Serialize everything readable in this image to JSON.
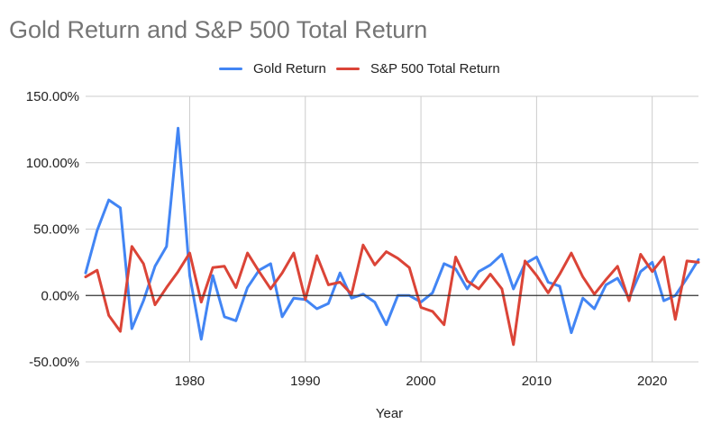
{
  "chart_data": {
    "type": "line",
    "title": "Gold Return and S&P 500 Total Return",
    "xlabel": "Year",
    "ylabel": "",
    "xlim": [
      1971,
      2024
    ],
    "ylim": [
      -0.5,
      1.5
    ],
    "x_ticks": [
      1980,
      1990,
      2000,
      2010,
      2020
    ],
    "y_ticks": [
      -0.5,
      0,
      0.5,
      1,
      1.5
    ],
    "y_tick_labels": [
      "-50.00%",
      "0.00%",
      "50.00%",
      "100.00%",
      "150.00%"
    ],
    "grid": true,
    "legend_position": "top",
    "years": [
      1971,
      1972,
      1973,
      1974,
      1975,
      1976,
      1977,
      1978,
      1979,
      1980,
      1981,
      1982,
      1983,
      1984,
      1985,
      1986,
      1987,
      1988,
      1989,
      1990,
      1991,
      1992,
      1993,
      1994,
      1995,
      1996,
      1997,
      1998,
      1999,
      2000,
      2001,
      2002,
      2003,
      2004,
      2005,
      2006,
      2007,
      2008,
      2009,
      2010,
      2011,
      2012,
      2013,
      2014,
      2015,
      2016,
      2017,
      2018,
      2019,
      2020,
      2021,
      2022,
      2023,
      2024
    ],
    "series": [
      {
        "name": "Gold Return",
        "color": "#4285f4",
        "values": [
          0.17,
          0.49,
          0.72,
          0.66,
          -0.25,
          -0.04,
          0.22,
          0.37,
          1.26,
          0.15,
          -0.33,
          0.15,
          -0.16,
          -0.19,
          0.06,
          0.19,
          0.24,
          -0.16,
          -0.02,
          -0.03,
          -0.1,
          -0.06,
          0.17,
          -0.02,
          0.01,
          -0.05,
          -0.22,
          0.0,
          0.0,
          -0.05,
          0.02,
          0.24,
          0.2,
          0.05,
          0.18,
          0.23,
          0.31,
          0.05,
          0.24,
          0.29,
          0.1,
          0.07,
          -0.28,
          -0.02,
          -0.1,
          0.08,
          0.13,
          -0.02,
          0.18,
          0.25,
          -0.04,
          0.0,
          0.13,
          0.27
        ]
      },
      {
        "name": "S&P 500 Total Return",
        "color": "#db4437",
        "values": [
          0.14,
          0.19,
          -0.15,
          -0.27,
          0.37,
          0.24,
          -0.07,
          0.06,
          0.18,
          0.32,
          -0.05,
          0.21,
          0.22,
          0.06,
          0.32,
          0.18,
          0.05,
          0.17,
          0.32,
          -0.03,
          0.3,
          0.08,
          0.1,
          0.01,
          0.38,
          0.23,
          0.33,
          0.28,
          0.21,
          -0.09,
          -0.12,
          -0.22,
          0.29,
          0.11,
          0.05,
          0.16,
          0.05,
          -0.37,
          0.26,
          0.15,
          0.02,
          0.16,
          0.32,
          0.14,
          0.01,
          0.12,
          0.22,
          -0.04,
          0.31,
          0.18,
          0.29,
          -0.18,
          0.26,
          0.25
        ]
      }
    ]
  }
}
